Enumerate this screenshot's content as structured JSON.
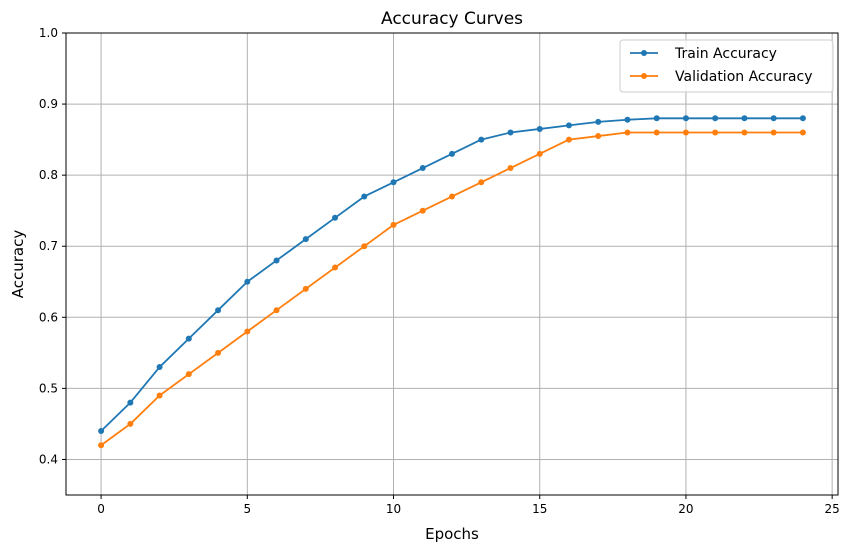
{
  "chart_data": {
    "type": "line",
    "title": "Accuracy Curves",
    "xlabel": "Epochs",
    "ylabel": "Accuracy",
    "xlim": [
      -1.2,
      25.2
    ],
    "ylim": [
      0.35,
      1.0
    ],
    "xticks": [
      0,
      5,
      10,
      15,
      20,
      25
    ],
    "yticks": [
      0.4,
      0.5,
      0.6,
      0.7,
      0.8,
      0.9,
      1.0
    ],
    "grid": true,
    "legend_position": "top-right",
    "x": [
      0,
      1,
      2,
      3,
      4,
      5,
      6,
      7,
      8,
      9,
      10,
      11,
      12,
      13,
      14,
      15,
      16,
      17,
      18,
      19,
      20,
      21,
      22,
      23,
      24
    ],
    "series": [
      {
        "name": "Train Accuracy",
        "color": "#1f77b4",
        "marker": "circle",
        "values": [
          0.44,
          0.48,
          0.53,
          0.57,
          0.61,
          0.65,
          0.68,
          0.71,
          0.74,
          0.77,
          0.79,
          0.81,
          0.83,
          0.85,
          0.86,
          0.865,
          0.87,
          0.875,
          0.878,
          0.88,
          0.88,
          0.88,
          0.88,
          0.88,
          0.88
        ]
      },
      {
        "name": "Validation Accuracy",
        "color": "#ff7f0e",
        "marker": "circle",
        "values": [
          0.42,
          0.45,
          0.49,
          0.52,
          0.55,
          0.58,
          0.61,
          0.64,
          0.67,
          0.7,
          0.73,
          0.75,
          0.77,
          0.79,
          0.81,
          0.83,
          0.85,
          0.855,
          0.86,
          0.86,
          0.86,
          0.86,
          0.86,
          0.86,
          0.86
        ]
      }
    ]
  }
}
